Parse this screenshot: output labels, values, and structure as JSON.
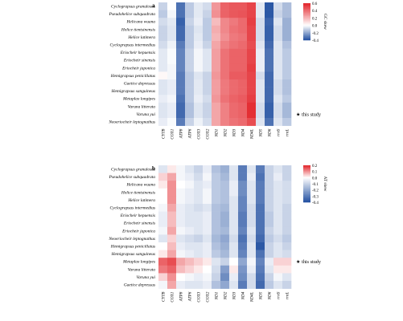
{
  "chart_data": [
    {
      "type": "heatmap",
      "panel_label": "a",
      "title": "",
      "legend_title": "GC skew",
      "legend_ticks": [
        "0.6",
        "0.4",
        "0.2",
        "0.0",
        "-0.2",
        "-0.4"
      ],
      "vmin": -0.4,
      "vmax": 0.6,
      "annotation": "this study",
      "annotation_row": 14,
      "columns": [
        "CYTB",
        "COX1",
        "ATP8",
        "ATP6",
        "COX3",
        "COX2",
        "ND1",
        "ND2",
        "ND3",
        "ND4",
        "ND4L",
        "ND5",
        "ND6",
        "rrnS",
        "rrnL"
      ],
      "rows": [
        "Cyclograpsus granulosus",
        "Pseudohelice subquadrata",
        "Helicana wuana",
        "Helice tientsinensis",
        "Helice latimera",
        "Cyclograpsus intermedius",
        "Eriocheir hepuensis",
        "Eriocheir sinensis",
        "Eriocheir japonica",
        "Hemigrapsus penicillatus",
        "Gaetice depressus",
        "Hemigrapsus sanguineus",
        "Metaplax longipes",
        "Varuna litterata",
        "Varuna yui",
        "Neoeriocheir leptognathus"
      ],
      "values": [
        [
          -0.1,
          0.0,
          -0.32,
          -0.12,
          -0.05,
          -0.08,
          0.28,
          0.42,
          0.45,
          0.45,
          0.5,
          -0.05,
          -0.38,
          -0.08,
          -0.15
        ],
        [
          -0.12,
          -0.02,
          -0.32,
          -0.12,
          -0.05,
          -0.1,
          0.3,
          0.42,
          0.45,
          0.46,
          0.5,
          -0.05,
          -0.38,
          -0.1,
          -0.15
        ],
        [
          -0.08,
          -0.05,
          -0.36,
          -0.1,
          -0.04,
          -0.12,
          0.18,
          0.32,
          0.36,
          0.4,
          0.52,
          -0.08,
          -0.35,
          -0.06,
          -0.18
        ],
        [
          -0.1,
          -0.06,
          -0.34,
          -0.12,
          -0.06,
          -0.12,
          0.22,
          0.32,
          0.38,
          0.4,
          0.5,
          -0.08,
          -0.36,
          -0.08,
          -0.18
        ],
        [
          -0.1,
          -0.06,
          -0.34,
          -0.12,
          -0.05,
          -0.12,
          0.2,
          0.3,
          0.36,
          0.38,
          0.5,
          -0.08,
          -0.36,
          -0.08,
          -0.18
        ],
        [
          -0.08,
          -0.03,
          -0.3,
          -0.12,
          -0.04,
          -0.1,
          0.24,
          0.34,
          0.38,
          0.4,
          0.48,
          -0.06,
          -0.34,
          -0.06,
          -0.14
        ],
        [
          -0.05,
          -0.01,
          -0.28,
          -0.1,
          -0.02,
          -0.06,
          0.26,
          0.38,
          0.42,
          0.42,
          0.5,
          -0.04,
          -0.32,
          -0.06,
          -0.12
        ],
        [
          -0.05,
          -0.01,
          -0.28,
          -0.1,
          -0.02,
          -0.06,
          0.26,
          0.38,
          0.42,
          0.42,
          0.5,
          -0.04,
          -0.32,
          -0.06,
          -0.12
        ],
        [
          -0.05,
          -0.02,
          -0.28,
          -0.1,
          -0.02,
          -0.06,
          0.26,
          0.38,
          0.42,
          0.42,
          0.52,
          -0.04,
          -0.32,
          -0.06,
          -0.12
        ],
        [
          0.02,
          -0.02,
          -0.3,
          -0.12,
          -0.06,
          -0.1,
          0.28,
          0.38,
          0.44,
          0.44,
          0.5,
          -0.08,
          -0.34,
          -0.06,
          -0.12
        ],
        [
          -0.06,
          -0.04,
          -0.3,
          -0.12,
          -0.05,
          -0.1,
          0.26,
          0.36,
          0.4,
          0.42,
          0.5,
          -0.06,
          -0.34,
          -0.08,
          -0.14
        ],
        [
          -0.06,
          -0.04,
          -0.3,
          -0.12,
          -0.05,
          -0.1,
          0.26,
          0.36,
          0.4,
          0.42,
          0.5,
          -0.06,
          -0.34,
          -0.08,
          -0.14
        ],
        [
          -0.04,
          -0.02,
          -0.32,
          -0.12,
          -0.04,
          -0.08,
          0.28,
          0.38,
          0.42,
          0.44,
          0.52,
          -0.06,
          -0.34,
          -0.06,
          -0.12
        ],
        [
          -0.06,
          -0.04,
          -0.34,
          -0.14,
          -0.06,
          -0.1,
          0.24,
          0.34,
          0.4,
          0.42,
          0.56,
          -0.08,
          -0.36,
          -0.08,
          -0.16
        ],
        [
          -0.06,
          -0.04,
          -0.34,
          -0.14,
          -0.06,
          -0.1,
          0.24,
          0.34,
          0.4,
          0.42,
          0.56,
          -0.08,
          -0.36,
          -0.08,
          -0.16
        ],
        [
          -0.04,
          -0.01,
          -0.3,
          -0.1,
          -0.03,
          -0.08,
          0.24,
          0.34,
          0.38,
          0.4,
          0.48,
          -0.06,
          -0.32,
          -0.06,
          -0.12
        ]
      ]
    },
    {
      "type": "heatmap",
      "panel_label": "b",
      "title": "",
      "legend_title": "AT skew",
      "legend_ticks": [
        "0.2",
        "0.1",
        "0.0",
        "-0.1",
        "-0.2",
        "-0.3",
        "-0.4"
      ],
      "vmin": -0.4,
      "vmax": 0.2,
      "annotation": "this study",
      "annotation_row": 12,
      "columns": [
        "CYTB",
        "COX1",
        "ATP8",
        "ATP6",
        "COX3",
        "COX2",
        "ND1",
        "ND2",
        "ND3",
        "ND4",
        "ND4L",
        "ND5",
        "ND6",
        "rrnS",
        "rrnL"
      ],
      "rows": [
        "Cyclograpsus granulosus",
        "Pseudohelice subquadrata",
        "Helicana wuana",
        "Helice tientsinensis",
        "Helice latimera",
        "Cyclograpsus intermedius",
        "Eriocheir hepuensis",
        "Eriocheir sinensis",
        "Eriocheir japonica",
        "Neoeriocheir leptognathus",
        "Hemigrapsus penicillatus",
        "Hemigrapsus sanguineus",
        "Metaplax longipes",
        "Varuna litterata",
        "Varuna yui",
        "Gaetice depressus"
      ],
      "values": [
        [
          -0.06,
          0.02,
          -0.02,
          -0.06,
          -0.1,
          -0.04,
          -0.14,
          -0.18,
          -0.06,
          -0.3,
          -0.06,
          -0.3,
          -0.1,
          -0.06,
          -0.1
        ],
        [
          0.04,
          0.08,
          -0.02,
          -0.04,
          -0.08,
          -0.02,
          -0.12,
          -0.16,
          -0.06,
          -0.3,
          -0.04,
          -0.32,
          -0.1,
          -0.04,
          -0.1
        ],
        [
          0.02,
          0.1,
          0.0,
          -0.02,
          -0.06,
          -0.04,
          -0.12,
          -0.14,
          -0.04,
          -0.26,
          -0.06,
          -0.3,
          -0.1,
          -0.06,
          -0.08
        ],
        [
          0.0,
          0.1,
          -0.02,
          -0.04,
          -0.06,
          -0.02,
          -0.12,
          -0.14,
          -0.04,
          -0.26,
          -0.06,
          -0.3,
          -0.1,
          -0.06,
          -0.08
        ],
        [
          0.0,
          0.1,
          -0.02,
          -0.04,
          -0.06,
          -0.02,
          -0.12,
          -0.14,
          -0.06,
          -0.28,
          -0.06,
          -0.3,
          -0.1,
          -0.06,
          -0.08
        ],
        [
          -0.02,
          0.08,
          -0.04,
          -0.06,
          -0.08,
          -0.06,
          -0.14,
          -0.16,
          -0.06,
          -0.28,
          -0.08,
          -0.32,
          -0.1,
          -0.06,
          -0.1
        ],
        [
          -0.04,
          0.06,
          -0.04,
          -0.06,
          -0.06,
          -0.04,
          -0.14,
          -0.18,
          -0.06,
          -0.3,
          -0.08,
          -0.32,
          -0.12,
          -0.06,
          -0.1
        ],
        [
          -0.04,
          0.06,
          -0.04,
          -0.06,
          -0.06,
          -0.04,
          -0.14,
          -0.18,
          -0.06,
          -0.3,
          -0.08,
          -0.32,
          -0.12,
          -0.06,
          -0.1
        ],
        [
          -0.02,
          0.08,
          -0.02,
          -0.04,
          -0.06,
          -0.04,
          -0.14,
          -0.16,
          -0.06,
          -0.28,
          -0.06,
          -0.32,
          -0.1,
          -0.06,
          -0.1
        ],
        [
          -0.06,
          0.04,
          -0.06,
          -0.08,
          -0.1,
          -0.06,
          -0.16,
          -0.2,
          -0.08,
          -0.32,
          -0.08,
          -0.34,
          -0.12,
          -0.08,
          -0.12
        ],
        [
          0.0,
          0.06,
          -0.04,
          -0.06,
          -0.06,
          -0.04,
          -0.14,
          -0.18,
          -0.06,
          -0.3,
          -0.06,
          -0.38,
          -0.1,
          -0.06,
          -0.1
        ],
        [
          0.02,
          0.08,
          -0.02,
          -0.04,
          -0.06,
          -0.04,
          -0.12,
          -0.16,
          -0.06,
          -0.28,
          -0.06,
          -0.32,
          -0.1,
          -0.06,
          -0.08
        ],
        [
          0.14,
          0.16,
          0.08,
          0.06,
          0.04,
          0.02,
          -0.06,
          -0.1,
          0.0,
          -0.2,
          -0.02,
          -0.28,
          -0.04,
          0.04,
          0.04
        ],
        [
          0.12,
          0.14,
          0.06,
          0.04,
          0.02,
          0.0,
          -0.08,
          -0.22,
          0.02,
          -0.24,
          -0.04,
          -0.3,
          -0.06,
          0.02,
          0.02
        ],
        [
          0.04,
          0.1,
          0.0,
          -0.02,
          -0.04,
          -0.02,
          -0.1,
          -0.26,
          -0.04,
          -0.26,
          -0.08,
          -0.32,
          -0.1,
          -0.02,
          -0.06
        ],
        [
          -0.02,
          0.08,
          -0.04,
          -0.06,
          -0.06,
          -0.04,
          -0.14,
          -0.2,
          -0.06,
          -0.3,
          -0.08,
          -0.34,
          -0.12,
          -0.06,
          -0.1
        ]
      ]
    }
  ]
}
